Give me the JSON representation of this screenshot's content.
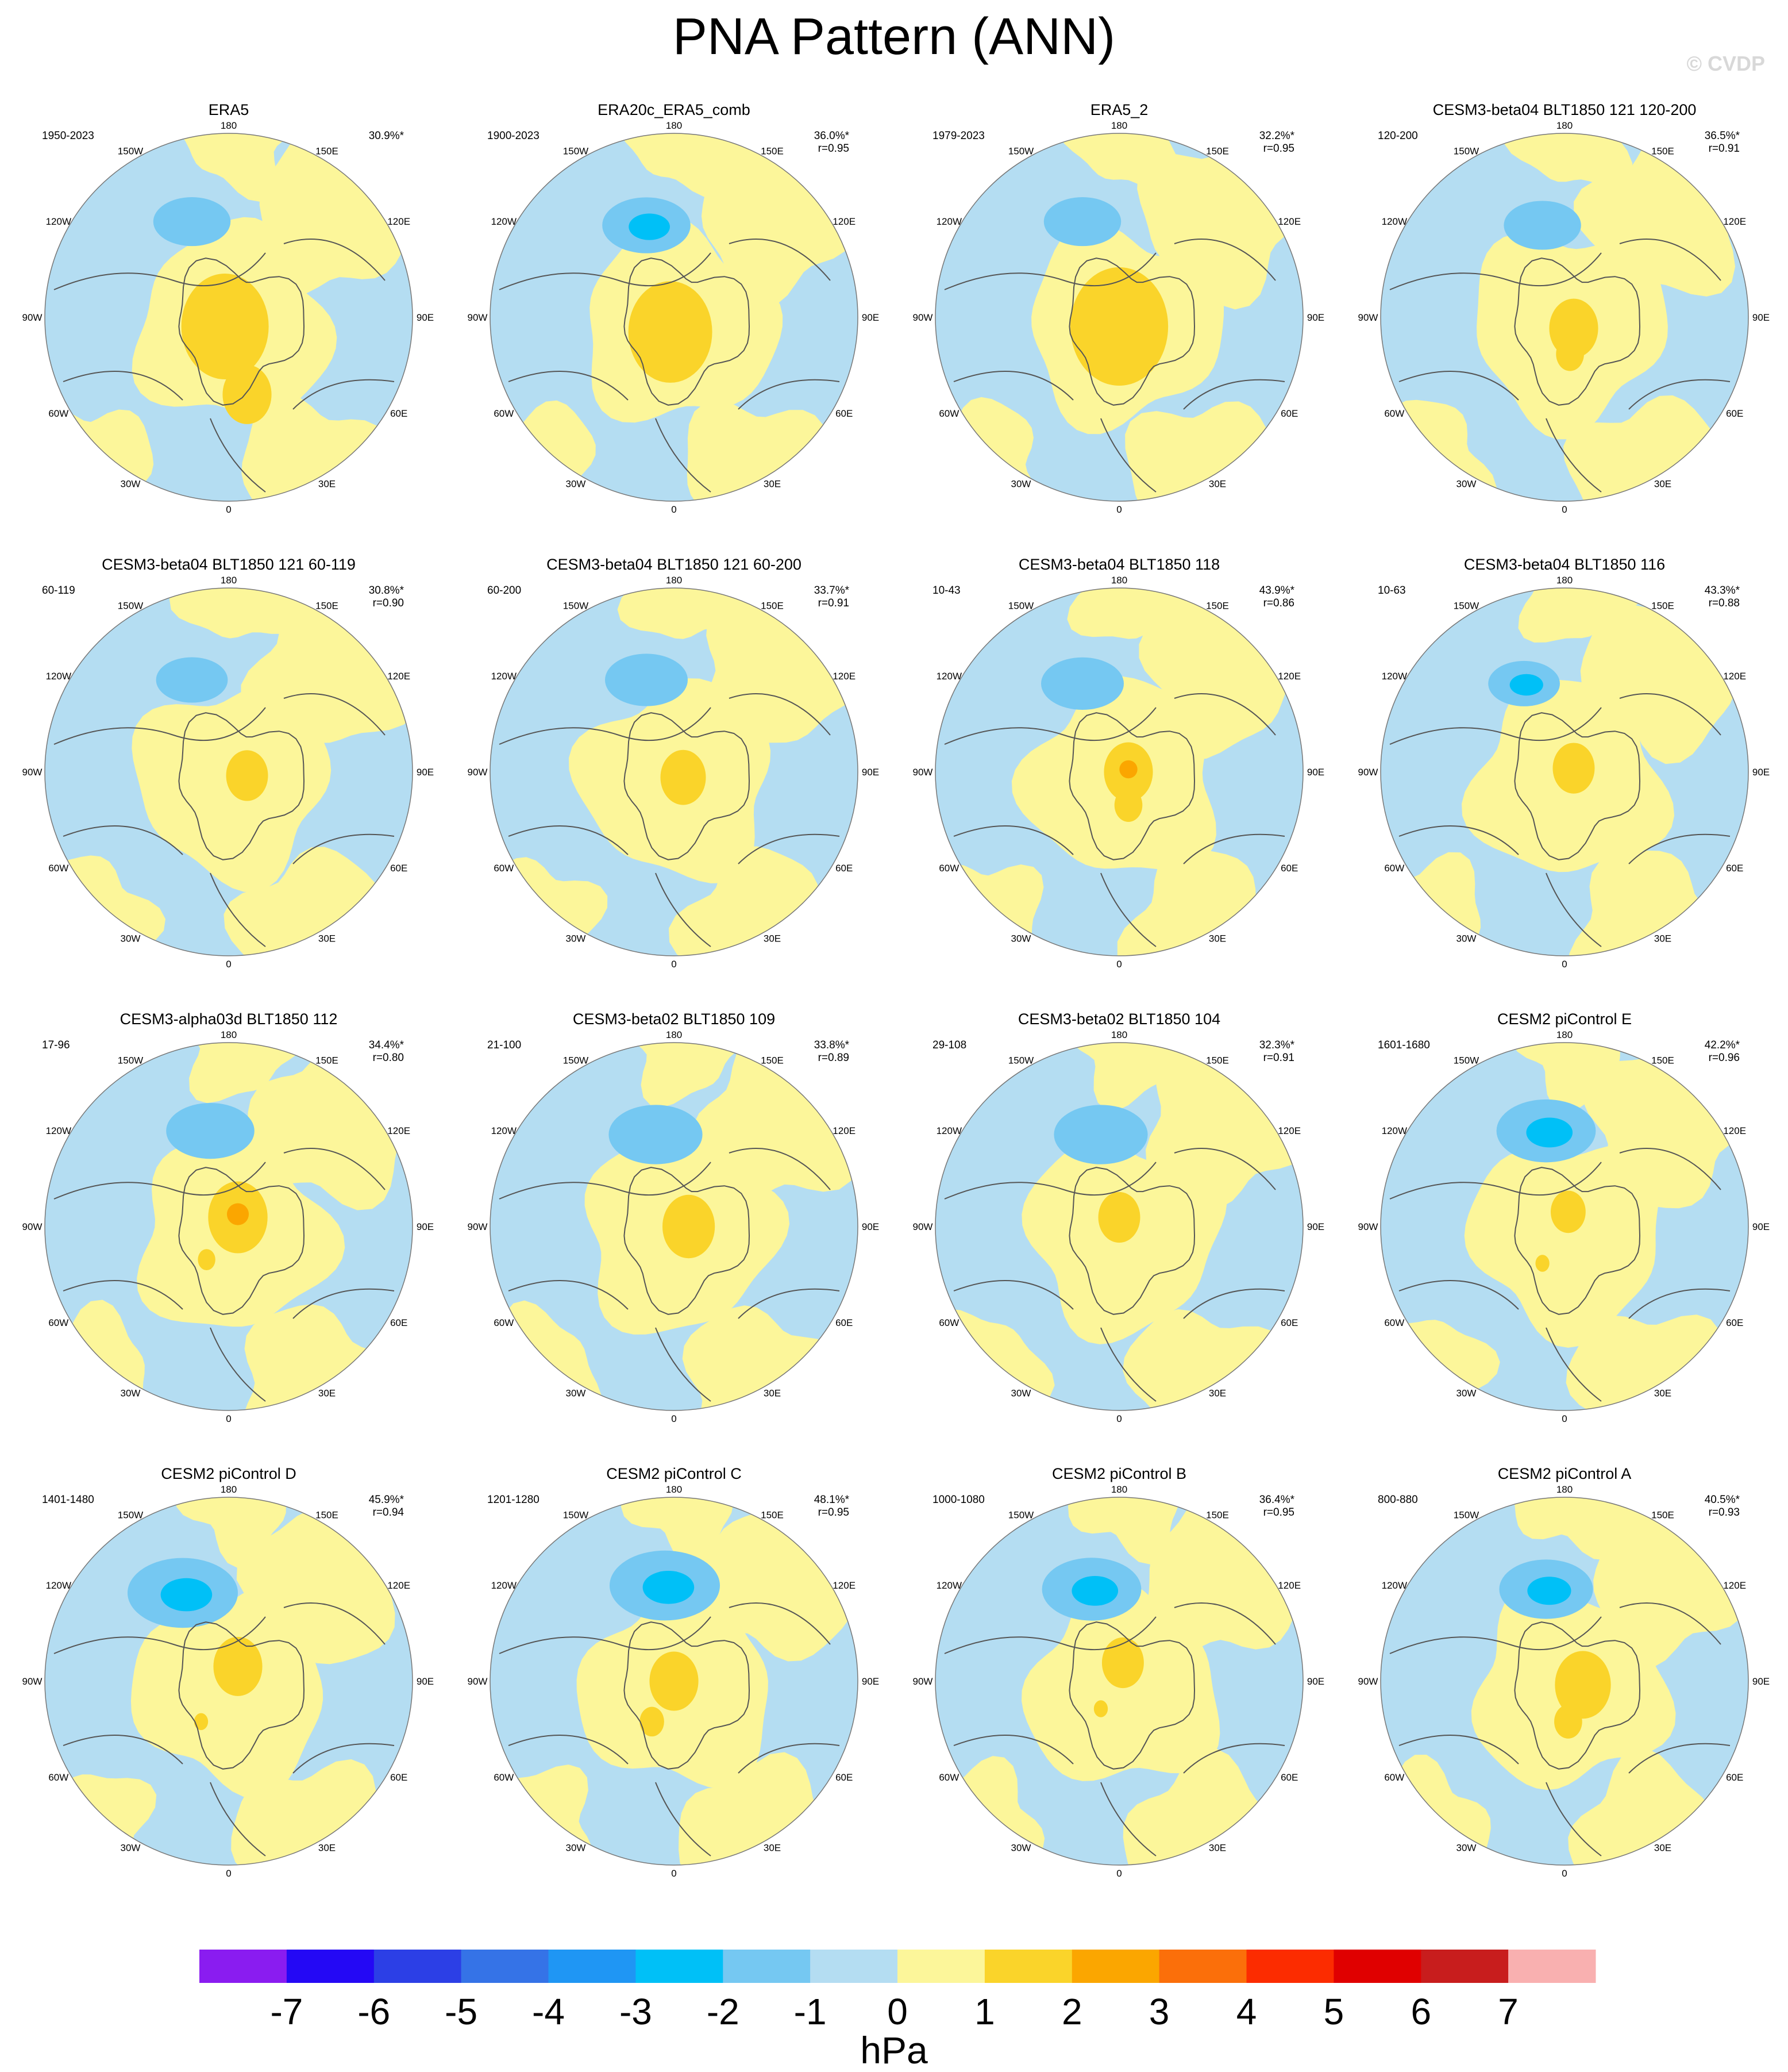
{
  "title": "PNA Pattern (ANN)",
  "watermark": "© CVDP",
  "colorbar": {
    "unit": "hPa",
    "labels": [
      "-7",
      "-6",
      "-5",
      "-4",
      "-3",
      "-2",
      "-1",
      "0",
      "1",
      "2",
      "3",
      "4",
      "5",
      "6",
      "7"
    ],
    "colors": [
      "#8a1cf0",
      "#2408f5",
      "#2c3fe6",
      "#3573e7",
      "#1f96f4",
      "#00c0f7",
      "#75c8f2",
      "#b4ddf2",
      "#fcf69a",
      "#fad42a",
      "#fba600",
      "#fb6f0a",
      "#fc2c00",
      "#e00000",
      "#c81d1d",
      "#f9b0b0"
    ]
  },
  "longitude_labels": [
    "180",
    "150E",
    "120E",
    "90E",
    "60E",
    "30E",
    "0",
    "30W",
    "60W",
    "90W",
    "120W",
    "150W"
  ],
  "panels": [
    {
      "title": "ERA5",
      "period": "1950-2023",
      "pct": "30.9%*",
      "r": "",
      "pos": [
        [
          -0.02,
          0.05,
          0.25
        ],
        [
          0.1,
          0.42,
          0.14
        ]
      ],
      "neg": [
        [
          -0.2,
          -0.52,
          0.14
        ]
      ]
    },
    {
      "title": "ERA20c_ERA5_comb",
      "period": "1900-2023",
      "pct": "36.0%*",
      "r": "r=0.95",
      "pos": [
        [
          -0.02,
          0.08,
          0.24
        ]
      ],
      "neg": [
        [
          -0.15,
          -0.5,
          0.16,
          "core"
        ]
      ]
    },
    {
      "title": "ERA5_2",
      "period": "1979-2023",
      "pct": "32.2%*",
      "r": "r=0.95",
      "pos": [
        [
          0.0,
          0.05,
          0.28
        ]
      ],
      "neg": [
        [
          -0.2,
          -0.52,
          0.14
        ]
      ]
    },
    {
      "title": "CESM3-beta04 BLT1850 121 120-200",
      "period": "120-200",
      "pct": "36.5%*",
      "r": "r=0.91",
      "pos": [
        [
          0.05,
          0.06,
          0.14
        ],
        [
          0.03,
          0.2,
          0.08
        ]
      ],
      "neg": [
        [
          -0.12,
          -0.5,
          0.14
        ]
      ]
    },
    {
      "title": "CESM3-beta04 BLT1850 121 60-119",
      "period": "60-119",
      "pct": "30.8%*",
      "r": "r=0.90",
      "pos": [
        [
          0.1,
          0.02,
          0.12
        ]
      ],
      "neg": [
        [
          -0.2,
          -0.5,
          0.13
        ]
      ]
    },
    {
      "title": "CESM3-beta04 BLT1850 121 60-200",
      "period": "60-200",
      "pct": "33.7%*",
      "r": "r=0.91",
      "pos": [
        [
          0.05,
          0.03,
          0.13
        ]
      ],
      "neg": [
        [
          -0.15,
          -0.5,
          0.15
        ]
      ]
    },
    {
      "title": "CESM3-beta04 BLT1850 118",
      "period": "10-43",
      "pct": "43.9%*",
      "r": "r=0.86",
      "pos": [
        [
          0.05,
          0.0,
          0.14,
          "core"
        ],
        [
          0.05,
          0.18,
          0.08
        ]
      ],
      "neg": [
        [
          -0.2,
          -0.48,
          0.15
        ]
      ]
    },
    {
      "title": "CESM3-beta04 BLT1850 116",
      "period": "10-63",
      "pct": "43.3%*",
      "r": "r=0.88",
      "pos": [
        [
          0.05,
          -0.02,
          0.12
        ]
      ],
      "neg": [
        [
          -0.22,
          -0.48,
          0.13,
          "core"
        ]
      ]
    },
    {
      "title": "CESM3-alpha03d BLT1850 112",
      "period": "17-96",
      "pct": "34.4%*",
      "r": "r=0.80",
      "pos": [
        [
          0.05,
          -0.05,
          0.17,
          "core"
        ],
        [
          -0.12,
          0.18,
          0.05
        ]
      ],
      "neg": [
        [
          -0.1,
          -0.52,
          0.16
        ]
      ]
    },
    {
      "title": "CESM3-beta02 BLT1850 109",
      "period": "21-100",
      "pct": "33.8%*",
      "r": "r=0.89",
      "pos": [
        [
          0.08,
          0.0,
          0.15
        ]
      ],
      "neg": [
        [
          -0.1,
          -0.5,
          0.17
        ]
      ]
    },
    {
      "title": "CESM3-beta02 BLT1850 104",
      "period": "29-108",
      "pct": "32.3%*",
      "r": "r=0.91",
      "pos": [
        [
          0.0,
          -0.05,
          0.12
        ]
      ],
      "neg": [
        [
          -0.1,
          -0.5,
          0.17
        ]
      ]
    },
    {
      "title": "CESM2 piControl E",
      "period": "1601-1680",
      "pct": "42.2%*",
      "r": "r=0.96",
      "pos": [
        [
          0.02,
          -0.08,
          0.1
        ],
        [
          -0.12,
          0.2,
          0.04
        ]
      ],
      "neg": [
        [
          -0.1,
          -0.52,
          0.18,
          "core"
        ]
      ]
    },
    {
      "title": "CESM2 piControl D",
      "period": "1401-1480",
      "pct": "45.9%*",
      "r": "r=0.94",
      "pos": [
        [
          0.05,
          -0.08,
          0.14
        ],
        [
          -0.15,
          0.22,
          0.04
        ]
      ],
      "neg": [
        [
          -0.25,
          -0.48,
          0.2,
          "core"
        ]
      ]
    },
    {
      "title": "CESM2 piControl C",
      "period": "1201-1280",
      "pct": "48.1%*",
      "r": "r=0.95",
      "pos": [
        [
          0.0,
          0.0,
          0.14
        ],
        [
          -0.12,
          0.22,
          0.07
        ]
      ],
      "neg": [
        [
          -0.05,
          -0.52,
          0.2,
          "core"
        ]
      ]
    },
    {
      "title": "CESM2 piControl B",
      "period": "1000-1080",
      "pct": "36.4%*",
      "r": "r=0.95",
      "pos": [
        [
          0.02,
          -0.1,
          0.12
        ],
        [
          -0.1,
          0.15,
          0.04
        ]
      ],
      "neg": [
        [
          -0.15,
          -0.5,
          0.18,
          "core"
        ]
      ]
    },
    {
      "title": "CESM2 piControl A",
      "period": "800-880",
      "pct": "40.5%*",
      "r": "r=0.93",
      "pos": [
        [
          0.1,
          0.02,
          0.16
        ],
        [
          0.02,
          0.22,
          0.08
        ]
      ],
      "neg": [
        [
          -0.1,
          -0.5,
          0.17,
          "core"
        ]
      ]
    }
  ]
}
